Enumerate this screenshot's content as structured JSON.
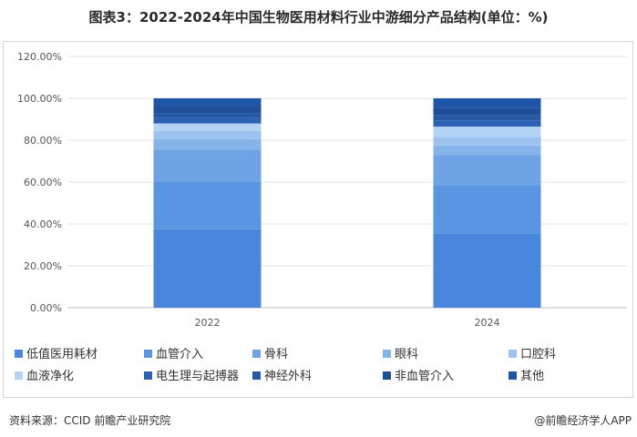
{
  "page": {
    "title": "图表3：2022-2024年中国生物医用材料行业中游细分产品结构(单位：%)",
    "source": "资料来源：CCID 前瞻产业研究院",
    "credit": "@前瞻经济学人APP"
  },
  "chart_data": {
    "type": "bar",
    "stacked": true,
    "categories": [
      "2022",
      "2024"
    ],
    "ylim": [
      0,
      120
    ],
    "yticks": [
      "0.00%",
      "20.00%",
      "40.00%",
      "60.00%",
      "80.00%",
      "100.00%",
      "120.00%"
    ],
    "grid": true,
    "legend_position": "bottom",
    "series": [
      {
        "name": "低值医用耗材",
        "color": "#4a86dd",
        "values": [
          37.5,
          35.5
        ]
      },
      {
        "name": "血管介入",
        "color": "#5a95e2",
        "values": [
          22.5,
          23
        ]
      },
      {
        "name": "骨科",
        "color": "#6ea3e6",
        "values": [
          15.5,
          14.5
        ]
      },
      {
        "name": "眼科",
        "color": "#86b3ea",
        "values": [
          5,
          4.5
        ]
      },
      {
        "name": "口腔科",
        "color": "#9cc3ef",
        "values": [
          4,
          4
        ]
      },
      {
        "name": "血液净化",
        "color": "#b4d2f3",
        "values": [
          3.5,
          5
        ]
      },
      {
        "name": "电生理与起搏器",
        "color": "#2b62b3",
        "values": [
          2.5,
          3
        ]
      },
      {
        "name": "神经外科",
        "color": "#2558a5",
        "values": [
          2.5,
          2.5
        ]
      },
      {
        "name": "非血管介入",
        "color": "#1f4f98",
        "values": [
          3.5,
          3.5
        ]
      },
      {
        "name": "其他",
        "color": "#1d56a6",
        "values": [
          3.5,
          4.5
        ]
      }
    ]
  }
}
